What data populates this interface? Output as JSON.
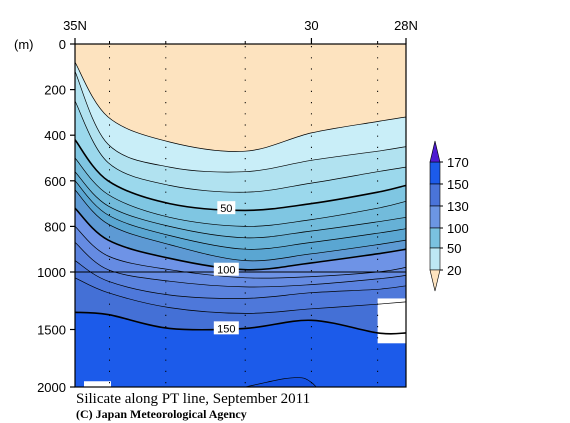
{
  "chart_data": {
    "type": "heatmap",
    "title": "Silicate along PT line, September 2011",
    "credit": "(C) Japan Meteorological Agency",
    "y_unit_label": "(m)",
    "x_ticks": [
      {
        "label": "35N",
        "lat": 35
      },
      {
        "label": "30",
        "lat": 30
      },
      {
        "label": "28N",
        "lat": 28
      }
    ],
    "y_ticks": [
      0,
      200,
      400,
      600,
      800,
      1000,
      1500,
      2000
    ],
    "y_axis_note": "depth axis: 0–1000 m linear, 1000–2000 m compressed",
    "colorbar": {
      "labels": [
        "20",
        "50",
        "100",
        "130",
        "150",
        "170"
      ],
      "levels": [
        20,
        30,
        40,
        50,
        60,
        70,
        80,
        90,
        100,
        110,
        120,
        130,
        140,
        150,
        160,
        170
      ],
      "colors": {
        "below_20": "#fde3bf",
        "b20_50": "#bde8f4",
        "b50_100": "#7ac2e0",
        "b100_130": "#6c96e3",
        "b130_150": "#4a74d9",
        "b150_170": "#1c5bea",
        "above_170": "#4e1bd1",
        "missing": "#ffffff"
      }
    },
    "contour_labels": [
      {
        "text": "50",
        "value": 50
      },
      {
        "text": "100",
        "value": 100
      },
      {
        "text": "150",
        "value": 150
      }
    ],
    "stations_lat": [
      35,
      34.27,
      33.08,
      31.4,
      30,
      28.6
    ],
    "contours": [
      {
        "value": 20,
        "bold": false,
        "pts": [
          [
            35,
            80
          ],
          [
            34.3,
            320
          ],
          [
            33,
            430
          ],
          [
            31.4,
            470
          ],
          [
            30,
            390
          ],
          [
            28.6,
            340
          ],
          [
            28,
            320
          ]
        ]
      },
      {
        "value": 30,
        "bold": false,
        "pts": [
          [
            35,
            120
          ],
          [
            34.3,
            440
          ],
          [
            33,
            540
          ],
          [
            31.4,
            560
          ],
          [
            30,
            510
          ],
          [
            28.6,
            470
          ],
          [
            28,
            450
          ]
        ]
      },
      {
        "value": 40,
        "bold": false,
        "pts": [
          [
            35,
            250
          ],
          [
            34.3,
            520
          ],
          [
            33,
            620
          ],
          [
            31.4,
            650
          ],
          [
            30,
            610
          ],
          [
            28.6,
            560
          ],
          [
            28,
            540
          ]
        ]
      },
      {
        "value": 50,
        "bold": true,
        "pts": [
          [
            35,
            420
          ],
          [
            34.3,
            600
          ],
          [
            33,
            700
          ],
          [
            31.4,
            730
          ],
          [
            30,
            700
          ],
          [
            28.6,
            650
          ],
          [
            28,
            620
          ]
        ]
      },
      {
        "value": 60,
        "bold": false,
        "pts": [
          [
            35,
            500
          ],
          [
            34.3,
            660
          ],
          [
            33,
            760
          ],
          [
            31.4,
            800
          ],
          [
            30,
            770
          ],
          [
            28.6,
            720
          ],
          [
            28,
            690
          ]
        ]
      },
      {
        "value": 70,
        "bold": false,
        "pts": [
          [
            35,
            560
          ],
          [
            34.3,
            710
          ],
          [
            33,
            800
          ],
          [
            31.4,
            850
          ],
          [
            30,
            820
          ],
          [
            28.6,
            780
          ],
          [
            28,
            760
          ]
        ]
      },
      {
        "value": 80,
        "bold": false,
        "pts": [
          [
            35,
            600
          ],
          [
            34.3,
            750
          ],
          [
            33,
            840
          ],
          [
            31.4,
            900
          ],
          [
            30,
            870
          ],
          [
            28.6,
            830
          ],
          [
            28,
            810
          ]
        ]
      },
      {
        "value": 90,
        "bold": false,
        "pts": [
          [
            35,
            640
          ],
          [
            34.3,
            790
          ],
          [
            33,
            880
          ],
          [
            31.4,
            950
          ],
          [
            30,
            920
          ],
          [
            28.6,
            880
          ],
          [
            28,
            860
          ]
        ]
      },
      {
        "value": 100,
        "bold": true,
        "pts": [
          [
            35,
            720
          ],
          [
            34.3,
            860
          ],
          [
            33,
            940
          ],
          [
            31.4,
            990
          ],
          [
            30,
            960
          ],
          [
            28.6,
            920
          ],
          [
            28,
            900
          ]
        ]
      },
      {
        "value": 110,
        "bold": false,
        "pts": [
          [
            35,
            800
          ],
          [
            34.3,
            930
          ],
          [
            33,
            990
          ],
          [
            31.4,
            1050
          ],
          [
            30,
            1040
          ],
          [
            28.6,
            1000
          ],
          [
            28,
            980
          ]
        ]
      },
      {
        "value": 120,
        "bold": false,
        "pts": [
          [
            35,
            870
          ],
          [
            34.3,
            990
          ],
          [
            33,
            1080
          ],
          [
            31.4,
            1130
          ],
          [
            30,
            1110
          ],
          [
            28.6,
            1060
          ],
          [
            28,
            1030
          ]
        ]
      },
      {
        "value": 130,
        "bold": false,
        "pts": [
          [
            35,
            950
          ],
          [
            34.3,
            1080
          ],
          [
            33,
            1200
          ],
          [
            31.4,
            1230
          ],
          [
            30,
            1180
          ],
          [
            28.6,
            1150
          ],
          [
            28,
            1120
          ]
        ]
      },
      {
        "value": 140,
        "bold": false,
        "pts": [
          [
            35,
            1050
          ],
          [
            34.3,
            1180
          ],
          [
            33,
            1310
          ],
          [
            31.4,
            1360
          ],
          [
            30,
            1320
          ],
          [
            28.6,
            1280
          ],
          [
            28,
            1260
          ]
        ]
      },
      {
        "value": 150,
        "bold": true,
        "pts": [
          [
            35,
            1350
          ],
          [
            34.3,
            1370
          ],
          [
            33,
            1490
          ],
          [
            31.4,
            1490
          ],
          [
            30,
            1420
          ],
          [
            28.6,
            1530
          ],
          [
            28,
            1530
          ]
        ]
      },
      {
        "value": 160,
        "bold": false,
        "pts": [
          [
            31.4,
            2000
          ],
          [
            30.6,
            1930
          ],
          [
            30.2,
            1920
          ],
          [
            30,
            1960
          ],
          [
            29.9,
            2000
          ]
        ]
      }
    ]
  }
}
